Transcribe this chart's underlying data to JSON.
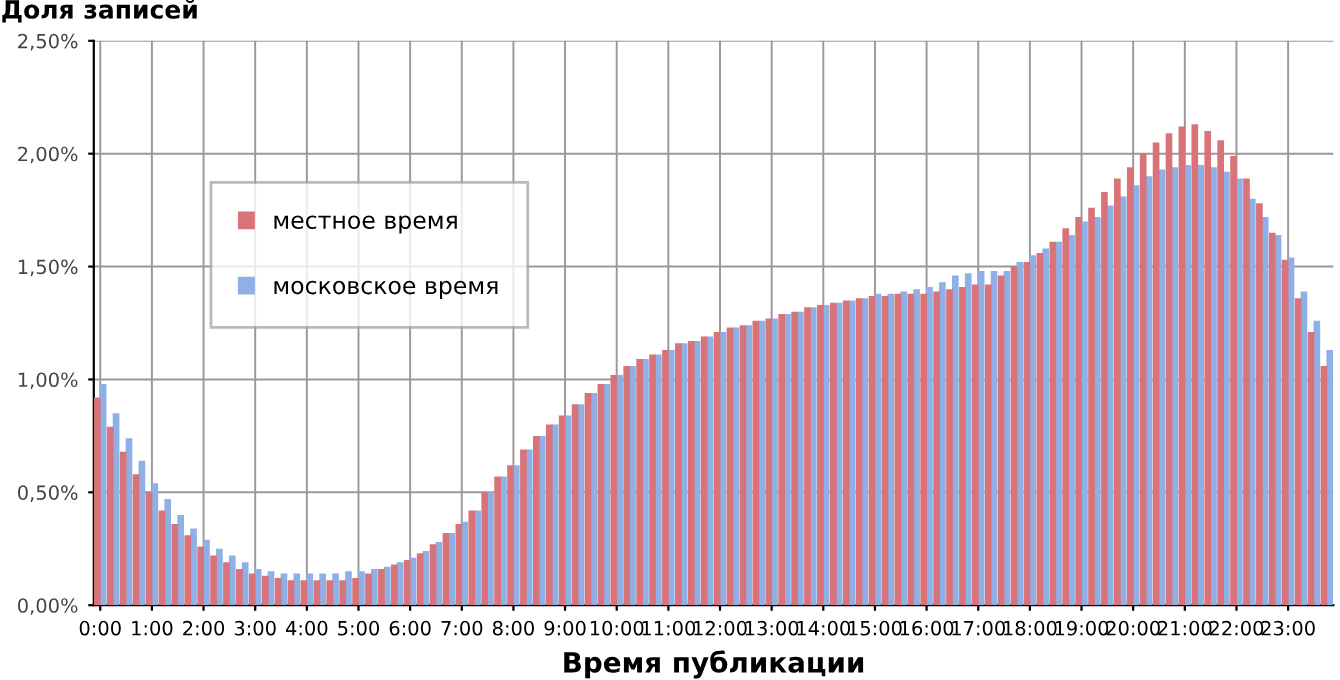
{
  "chart_data": {
    "type": "bar",
    "title": "Доля записей",
    "xlabel": "Время публикации",
    "categories": [
      "0:00",
      null,
      null,
      null,
      "1:00",
      null,
      null,
      null,
      "2:00",
      null,
      null,
      null,
      "3:00",
      null,
      null,
      null,
      "4:00",
      null,
      null,
      null,
      "5:00",
      null,
      null,
      null,
      "6:00",
      null,
      null,
      null,
      "7:00",
      null,
      null,
      null,
      "8:00",
      null,
      null,
      null,
      "9:00",
      null,
      null,
      null,
      "10:00",
      null,
      null,
      null,
      "11:00",
      null,
      null,
      null,
      "12:00",
      null,
      null,
      null,
      "13:00",
      null,
      null,
      null,
      "14:00",
      null,
      null,
      null,
      "15:00",
      null,
      null,
      null,
      "16:00",
      null,
      null,
      null,
      "17:00",
      null,
      null,
      null,
      "18:00",
      null,
      null,
      null,
      "19:00",
      null,
      null,
      null,
      "20:00",
      null,
      null,
      null,
      "21:00",
      null,
      null,
      null,
      "22:00",
      null,
      null,
      null,
      "23:00",
      null,
      null,
      null
    ],
    "series": [
      {
        "name": "местное время",
        "color": "#d9737a",
        "values": [
          0.92,
          0.79,
          0.68,
          0.58,
          0.5,
          0.42,
          0.36,
          0.31,
          0.26,
          0.22,
          0.19,
          0.16,
          0.14,
          0.13,
          0.12,
          0.11,
          0.11,
          0.11,
          0.11,
          0.11,
          0.12,
          0.14,
          0.16,
          0.18,
          0.2,
          0.23,
          0.27,
          0.32,
          0.36,
          0.42,
          0.5,
          0.57,
          0.62,
          0.69,
          0.75,
          0.8,
          0.84,
          0.89,
          0.94,
          0.98,
          1.02,
          1.06,
          1.09,
          1.11,
          1.13,
          1.16,
          1.17,
          1.19,
          1.21,
          1.23,
          1.24,
          1.26,
          1.27,
          1.29,
          1.3,
          1.32,
          1.33,
          1.34,
          1.35,
          1.36,
          1.37,
          1.37,
          1.38,
          1.38,
          1.38,
          1.39,
          1.4,
          1.41,
          1.42,
          1.42,
          1.46,
          1.5,
          1.52,
          1.56,
          1.61,
          1.67,
          1.72,
          1.76,
          1.83,
          1.89,
          1.94,
          2.0,
          2.05,
          2.09,
          2.12,
          2.13,
          2.1,
          2.06,
          1.99,
          1.89,
          1.78,
          1.65,
          1.53,
          1.36,
          1.21,
          1.06
        ]
      },
      {
        "name": "московское время",
        "color": "#8fb0e6",
        "values": [
          0.98,
          0.85,
          0.74,
          0.64,
          0.54,
          0.47,
          0.4,
          0.34,
          0.29,
          0.25,
          0.22,
          0.19,
          0.16,
          0.15,
          0.14,
          0.14,
          0.14,
          0.14,
          0.14,
          0.15,
          0.15,
          0.16,
          0.17,
          0.19,
          0.21,
          0.24,
          0.28,
          0.32,
          0.37,
          0.42,
          0.5,
          0.57,
          0.62,
          0.69,
          0.75,
          0.8,
          0.84,
          0.89,
          0.94,
          0.98,
          1.02,
          1.06,
          1.09,
          1.11,
          1.13,
          1.16,
          1.17,
          1.19,
          1.21,
          1.23,
          1.24,
          1.26,
          1.27,
          1.29,
          1.3,
          1.32,
          1.33,
          1.34,
          1.35,
          1.36,
          1.38,
          1.38,
          1.39,
          1.4,
          1.41,
          1.43,
          1.46,
          1.47,
          1.48,
          1.48,
          1.48,
          1.52,
          1.55,
          1.58,
          1.61,
          1.64,
          1.7,
          1.72,
          1.77,
          1.81,
          1.86,
          1.9,
          1.93,
          1.94,
          1.95,
          1.95,
          1.94,
          1.92,
          1.89,
          1.8,
          1.72,
          1.64,
          1.54,
          1.39,
          1.26,
          1.13
        ]
      }
    ],
    "ylim": [
      0,
      2.5
    ],
    "yticks": [
      {
        "value": 0,
        "label": "0,00%"
      },
      {
        "value": 0.5,
        "label": "0,50%"
      },
      {
        "value": 1,
        "label": "1,00%"
      },
      {
        "value": 1.5,
        "label": "1,50%"
      },
      {
        "value": 2,
        "label": "2,00%"
      },
      {
        "value": 2.5,
        "label": "2,50%"
      }
    ],
    "grid": true,
    "legend": "top left"
  }
}
